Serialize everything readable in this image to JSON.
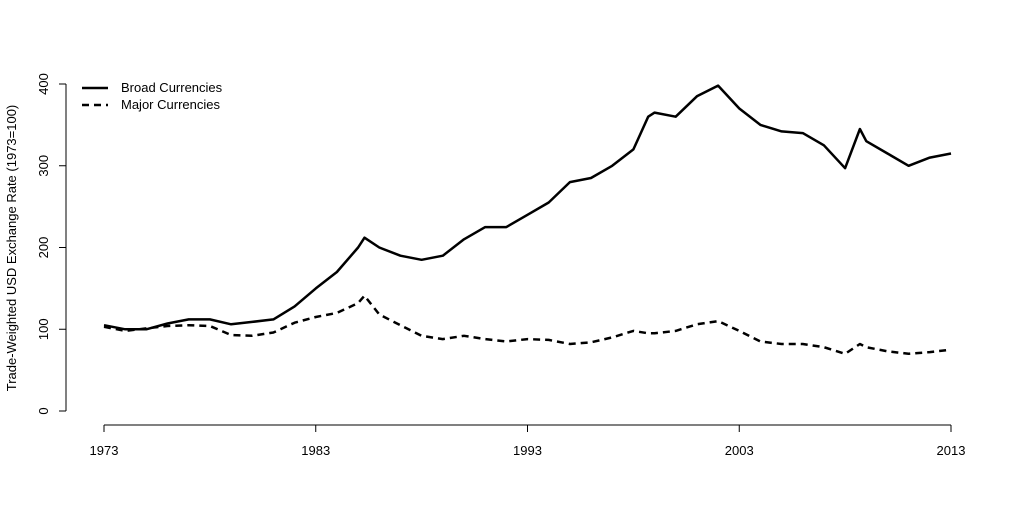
{
  "chart_data": {
    "type": "line",
    "ylabel": "Trade-Weighted USD Exchange Rate (1973=100)",
    "x": [
      1973,
      1974,
      1975,
      1976,
      1977,
      1978,
      1979,
      1980,
      1981,
      1982,
      1983,
      1984,
      1985,
      1985.3,
      1986,
      1987,
      1988,
      1989,
      1990,
      1991,
      1992,
      1993,
      1994,
      1995,
      1996,
      1997,
      1998,
      1998.7,
      1999,
      2000,
      2001,
      2002,
      2003,
      2004,
      2005,
      2006,
      2007,
      2008,
      2008.7,
      2009,
      2010,
      2011,
      2012,
      2013
    ],
    "series": [
      {
        "name": "Broad Currencies",
        "color": "#000000",
        "linestyle": "solid",
        "values": [
          105,
          100,
          100,
          107,
          112,
          112,
          106,
          109,
          112,
          128,
          150,
          170,
          200,
          212,
          200,
          190,
          185,
          190,
          210,
          225,
          225,
          240,
          255,
          280,
          285,
          300,
          320,
          360,
          365,
          360,
          385,
          398,
          370,
          350,
          342,
          340,
          325,
          297,
          345,
          330,
          315,
          300,
          310,
          315
        ]
      },
      {
        "name": "Major Currencies",
        "color": "#000000",
        "linestyle": "dashed",
        "values": [
          103,
          98,
          101,
          104,
          105,
          104,
          93,
          92,
          96,
          108,
          115,
          120,
          132,
          141,
          118,
          105,
          92,
          88,
          92,
          88,
          85,
          88,
          87,
          82,
          84,
          90,
          98,
          95,
          95,
          98,
          106,
          110,
          98,
          85,
          82,
          82,
          78,
          70,
          82,
          78,
          73,
          70,
          72,
          75
        ]
      }
    ],
    "xlim": [
      1973,
      2013
    ],
    "xticks": [
      1973,
      1983,
      1993,
      2003,
      2013
    ],
    "ylim": [
      0,
      400
    ],
    "yticks": [
      0,
      100,
      200,
      300,
      400
    ],
    "legend": "top-left"
  }
}
